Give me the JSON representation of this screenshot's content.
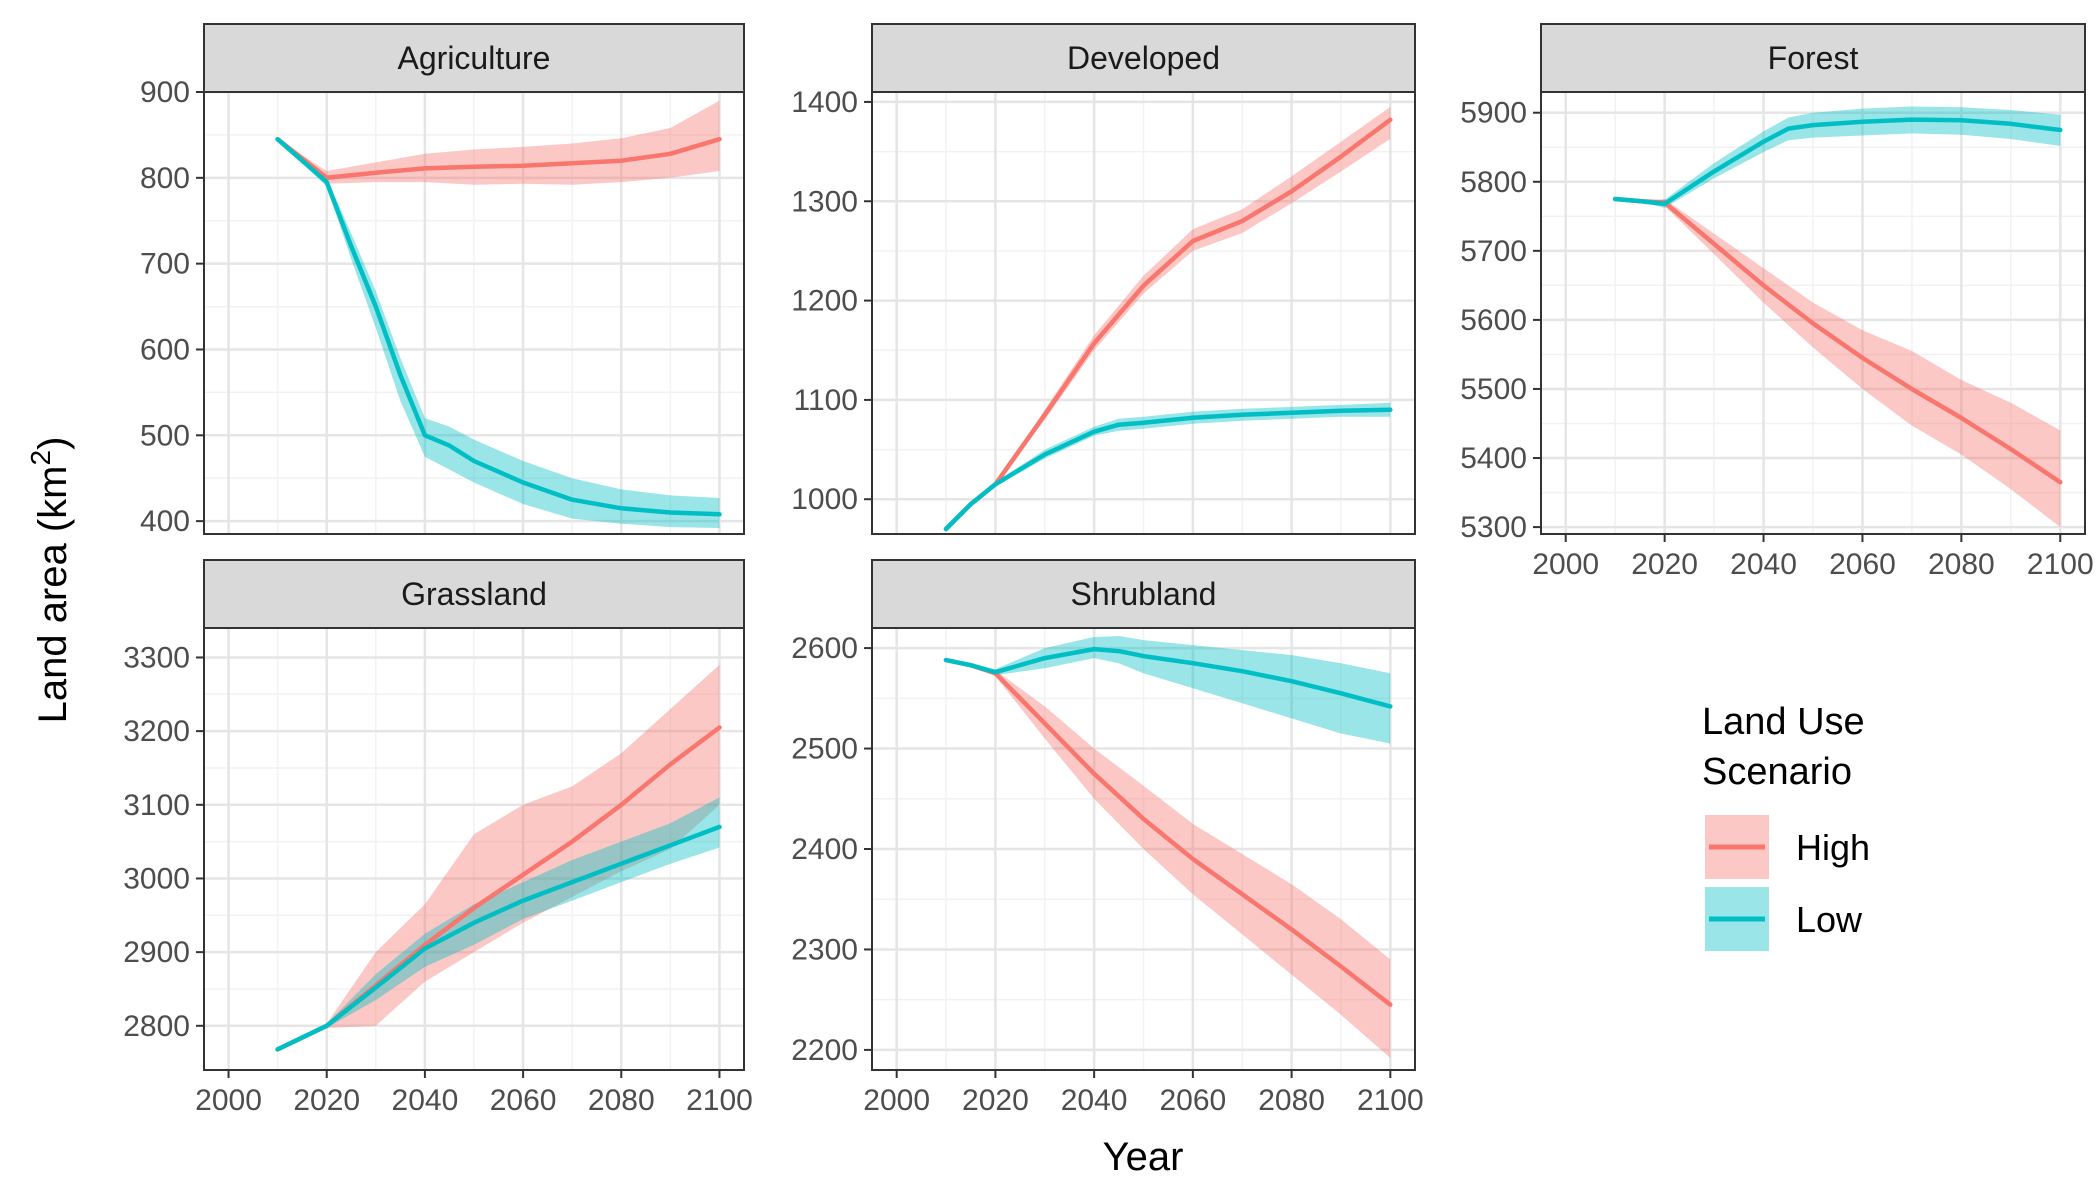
{
  "chart_data": {
    "type": "line",
    "xlabel": "Year",
    "ylabel": "Land area (km",
    "ylabel_sup": "2",
    "ylabel_close": ")",
    "x_ticks": [
      2000,
      2020,
      2040,
      2060,
      2080,
      2100
    ],
    "xlim": [
      1995,
      2105
    ],
    "grid": true,
    "legend": {
      "title_line1": "Land Use",
      "title_line2": "Scenario",
      "position": "right",
      "entries": [
        {
          "name": "High",
          "color": "#F8766D"
        },
        {
          "name": "Low",
          "color": "#00BFC4"
        }
      ]
    },
    "panels": [
      {
        "title": "Agriculture",
        "ylim": [
          385,
          900
        ],
        "y_ticks": [
          400,
          500,
          600,
          700,
          800,
          900
        ],
        "series": [
          {
            "name": "High",
            "color": "#F8766D",
            "x": [
              2010,
              2020,
              2030,
              2040,
              2050,
              2060,
              2070,
              2080,
              2090,
              2100
            ],
            "values": [
              845,
              800,
              806,
              811,
              813,
              814,
              817,
              820,
              828,
              845
            ],
            "lower": [
              845,
              793,
              795,
              795,
              792,
              793,
              792,
              795,
              800,
              808
            ],
            "upper": [
              845,
              808,
              818,
              828,
              833,
              836,
              840,
              846,
              858,
              890
            ]
          },
          {
            "name": "Low",
            "color": "#00BFC4",
            "x": [
              2010,
              2020,
              2025,
              2030,
              2035,
              2040,
              2045,
              2050,
              2060,
              2070,
              2080,
              2090,
              2100
            ],
            "values": [
              845,
              795,
              720,
              650,
              570,
              500,
              488,
              470,
              445,
              425,
              415,
              410,
              408
            ],
            "lower": [
              845,
              790,
              705,
              625,
              540,
              475,
              460,
              445,
              420,
              403,
              397,
              393,
              392
            ],
            "upper": [
              845,
              800,
              735,
              668,
              590,
              520,
              510,
              495,
              470,
              450,
              437,
              430,
              427
            ]
          }
        ]
      },
      {
        "title": "Developed",
        "ylim": [
          965,
          1410
        ],
        "y_ticks": [
          1000,
          1100,
          1200,
          1300,
          1400
        ],
        "series": [
          {
            "name": "High",
            "color": "#F8766D",
            "x": [
              2010,
              2015,
              2020,
              2030,
              2040,
              2050,
              2060,
              2070,
              2080,
              2090,
              2100
            ],
            "values": [
              970,
              995,
              1015,
              1085,
              1157,
              1215,
              1260,
              1280,
              1310,
              1345,
              1382
            ],
            "lower": [
              970,
              995,
              1015,
              1080,
              1150,
              1207,
              1250,
              1268,
              1298,
              1330,
              1363
            ],
            "upper": [
              970,
              995,
              1015,
              1090,
              1165,
              1225,
              1272,
              1292,
              1325,
              1360,
              1395
            ]
          },
          {
            "name": "Low",
            "color": "#00BFC4",
            "x": [
              2010,
              2015,
              2020,
              2030,
              2040,
              2045,
              2050,
              2060,
              2070,
              2080,
              2090,
              2100
            ],
            "values": [
              970,
              995,
              1015,
              1045,
              1068,
              1075,
              1077,
              1082,
              1085,
              1087,
              1089,
              1090
            ],
            "lower": [
              970,
              995,
              1013,
              1041,
              1064,
              1069,
              1071,
              1076,
              1079,
              1081,
              1083,
              1083
            ],
            "upper": [
              970,
              995,
              1017,
              1050,
              1073,
              1081,
              1083,
              1088,
              1091,
              1093,
              1095,
              1097
            ]
          }
        ]
      },
      {
        "title": "Forest",
        "ylim": [
          5290,
          5930
        ],
        "y_ticks": [
          5300,
          5400,
          5500,
          5600,
          5700,
          5800,
          5900
        ],
        "series": [
          {
            "name": "High",
            "color": "#F8766D",
            "x": [
              2010,
              2015,
              2020,
              2030,
              2040,
              2050,
              2060,
              2070,
              2080,
              2090,
              2100
            ],
            "values": [
              5775,
              5772,
              5770,
              5710,
              5650,
              5595,
              5545,
              5500,
              5458,
              5413,
              5365
            ],
            "lower": [
              5775,
              5772,
              5765,
              5695,
              5625,
              5560,
              5500,
              5447,
              5405,
              5355,
              5300
            ],
            "upper": [
              5775,
              5772,
              5775,
              5725,
              5675,
              5625,
              5585,
              5555,
              5513,
              5480,
              5440
            ]
          },
          {
            "name": "Low",
            "color": "#00BFC4",
            "x": [
              2010,
              2015,
              2020,
              2030,
              2040,
              2045,
              2050,
              2060,
              2070,
              2080,
              2090,
              2100
            ],
            "values": [
              5775,
              5772,
              5768,
              5815,
              5858,
              5877,
              5882,
              5887,
              5890,
              5889,
              5884,
              5875
            ],
            "lower": [
              5775,
              5772,
              5762,
              5805,
              5843,
              5860,
              5864,
              5867,
              5870,
              5868,
              5862,
              5852
            ],
            "upper": [
              5775,
              5772,
              5774,
              5827,
              5873,
              5893,
              5900,
              5906,
              5909,
              5908,
              5904,
              5897
            ]
          }
        ]
      },
      {
        "title": "Grassland",
        "ylim": [
          2740,
          3340
        ],
        "y_ticks": [
          2800,
          2900,
          3000,
          3100,
          3200,
          3300
        ],
        "series": [
          {
            "name": "High",
            "color": "#F8766D",
            "x": [
              2010,
              2020,
              2030,
              2040,
              2050,
              2060,
              2070,
              2080,
              2090,
              2100
            ],
            "values": [
              2768,
              2800,
              2855,
              2910,
              2960,
              3005,
              3050,
              3100,
              3155,
              3205
            ],
            "lower": [
              2768,
              2797,
              2800,
              2860,
              2900,
              2940,
              2975,
              3010,
              3040,
              3100
            ],
            "upper": [
              2768,
              2803,
              2900,
              2965,
              3060,
              3100,
              3125,
              3170,
              3230,
              3290
            ]
          },
          {
            "name": "Low",
            "color": "#00BFC4",
            "x": [
              2010,
              2020,
              2030,
              2040,
              2050,
              2060,
              2070,
              2080,
              2090,
              2100
            ],
            "values": [
              2768,
              2800,
              2852,
              2905,
              2940,
              2970,
              2995,
              3020,
              3045,
              3070
            ],
            "lower": [
              2768,
              2797,
              2835,
              2880,
              2910,
              2945,
              2970,
              2995,
              3020,
              3042
            ],
            "upper": [
              2768,
              2803,
              2870,
              2925,
              2965,
              2995,
              3025,
              3050,
              3075,
              3110
            ]
          }
        ]
      },
      {
        "title": "Shrubland",
        "ylim": [
          2180,
          2620
        ],
        "y_ticks": [
          2200,
          2300,
          2400,
          2500,
          2600
        ],
        "series": [
          {
            "name": "High",
            "color": "#F8766D",
            "x": [
              2010,
              2015,
              2020,
              2030,
              2040,
              2050,
              2060,
              2070,
              2080,
              2090,
              2100
            ],
            "values": [
              2588,
              2583,
              2575,
              2525,
              2475,
              2430,
              2390,
              2355,
              2320,
              2283,
              2245
            ],
            "lower": [
              2588,
              2583,
              2572,
              2510,
              2450,
              2400,
              2355,
              2315,
              2275,
              2235,
              2192
            ],
            "upper": [
              2588,
              2583,
              2578,
              2542,
              2500,
              2463,
              2425,
              2395,
              2365,
              2330,
              2290
            ]
          },
          {
            "name": "Low",
            "color": "#00BFC4",
            "x": [
              2010,
              2015,
              2020,
              2030,
              2040,
              2045,
              2050,
              2060,
              2070,
              2080,
              2090,
              2100
            ],
            "values": [
              2588,
              2583,
              2576,
              2590,
              2599,
              2597,
              2592,
              2585,
              2577,
              2567,
              2555,
              2542
            ],
            "lower": [
              2588,
              2583,
              2573,
              2580,
              2590,
              2585,
              2575,
              2560,
              2545,
              2530,
              2515,
              2505
            ],
            "upper": [
              2588,
              2583,
              2579,
              2600,
              2611,
              2612,
              2608,
              2603,
              2598,
              2593,
              2585,
              2575
            ]
          }
        ]
      }
    ]
  }
}
